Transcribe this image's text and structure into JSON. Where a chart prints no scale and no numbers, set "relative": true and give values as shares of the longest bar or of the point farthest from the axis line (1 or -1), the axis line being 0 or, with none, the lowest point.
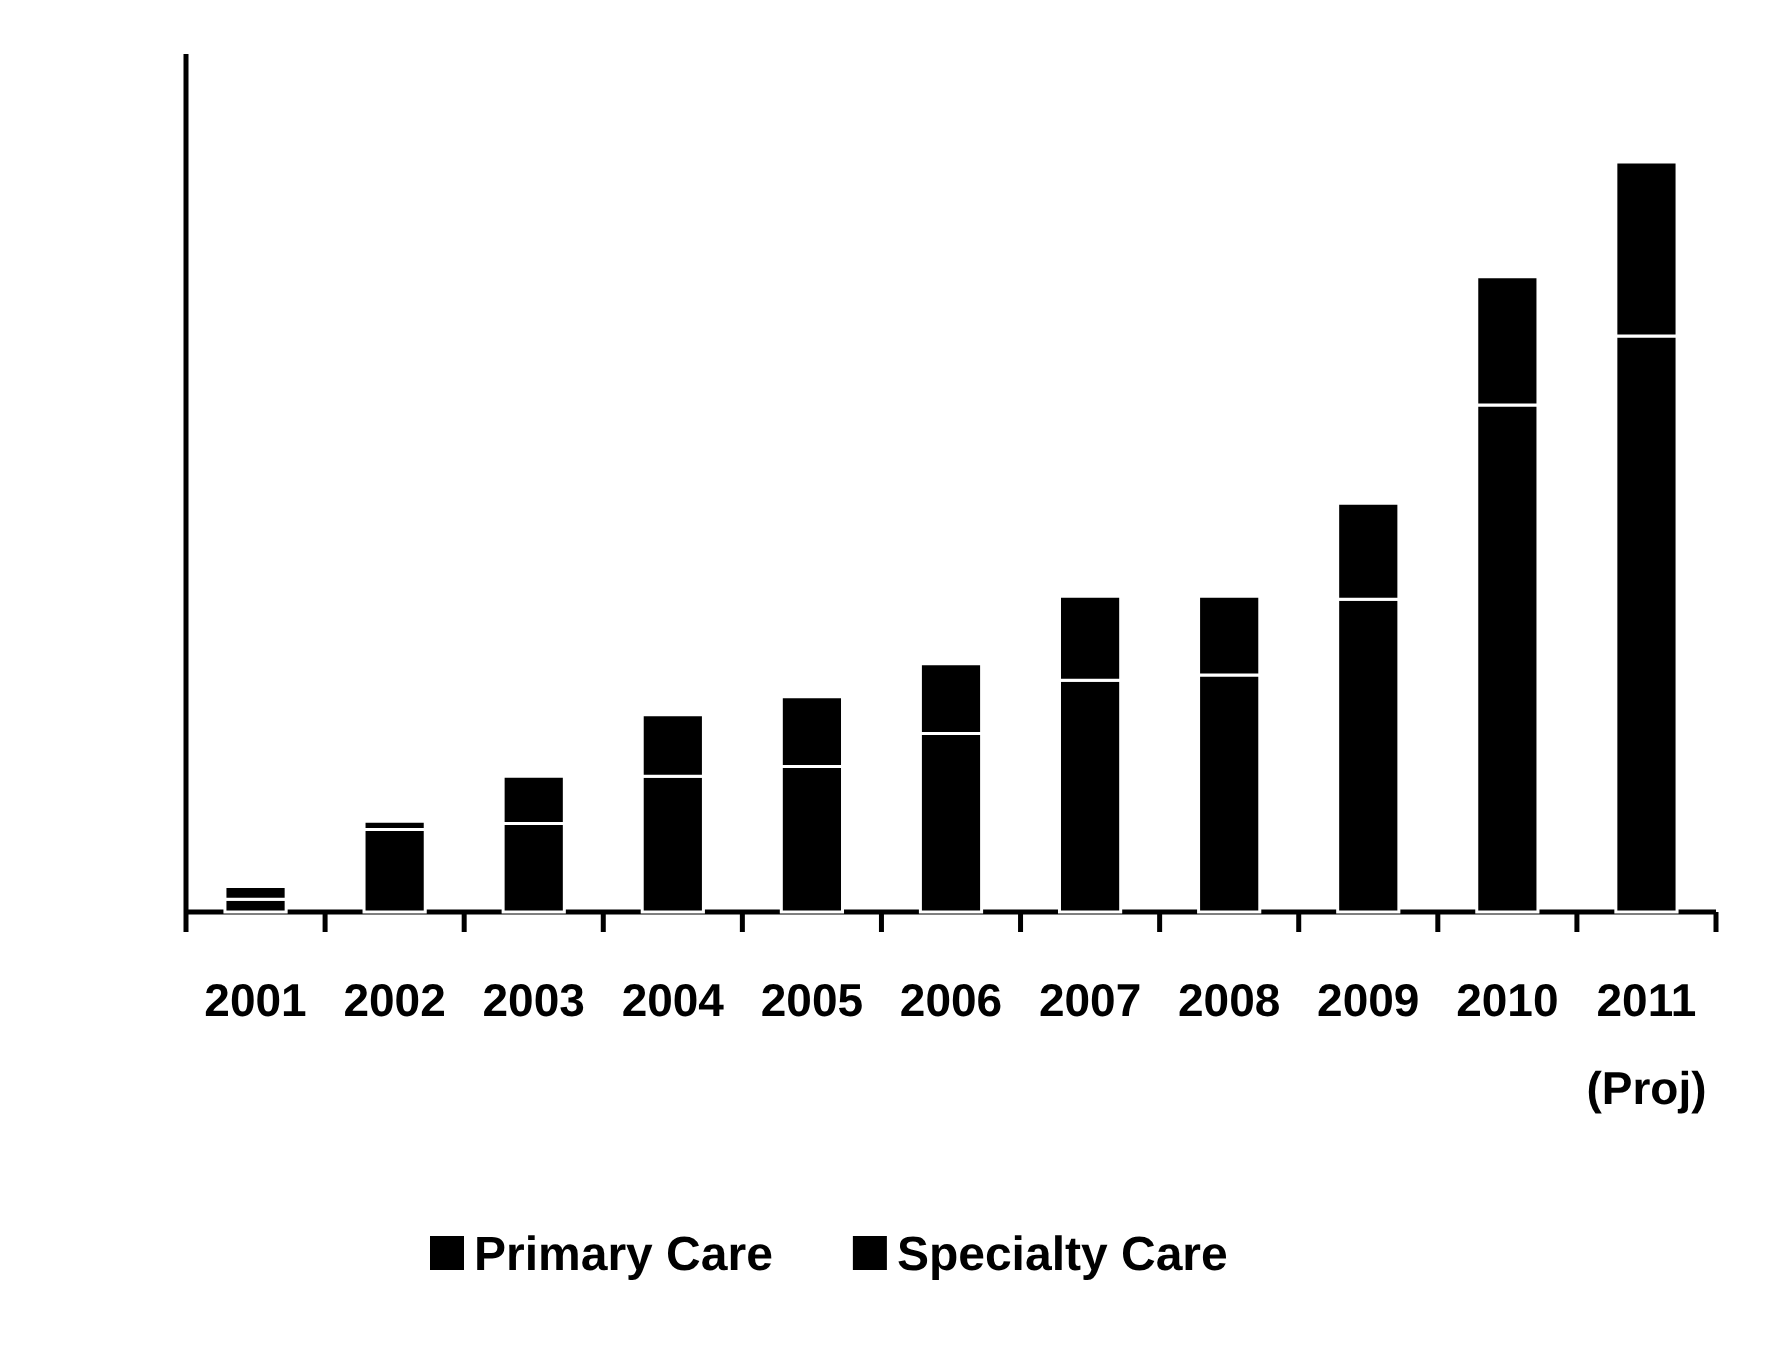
{
  "chart_data": {
    "type": "bar",
    "stacked": true,
    "relative": true,
    "categories": [
      "2001",
      "2002",
      "2003",
      "2004",
      "2005",
      "2006",
      "2007",
      "2008",
      "2009",
      "2010",
      "2011 (Proj)"
    ],
    "series": [
      {
        "name": "Primary Care",
        "color": "#000000",
        "values": [
          0.017,
          0.11,
          0.118,
          0.181,
          0.194,
          0.238,
          0.309,
          0.316,
          0.417,
          0.676,
          0.768
        ]
      },
      {
        "name": "Specialty Care",
        "color": "#000000",
        "values": [
          0.017,
          0.011,
          0.063,
          0.082,
          0.093,
          0.093,
          0.112,
          0.105,
          0.128,
          0.171,
          0.232
        ]
      }
    ],
    "legend": "bottom"
  }
}
